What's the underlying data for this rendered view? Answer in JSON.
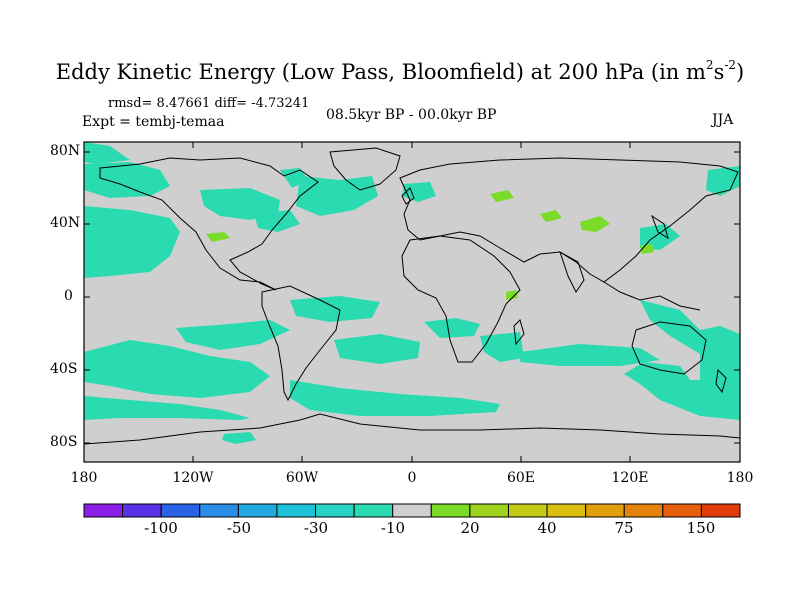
{
  "title": {
    "main": "Eddy Kinetic Energy (Low Pass, Bloomfield) at 200 hPa (in m",
    "sup1": "2",
    "mid": "s",
    "sup2": "-2",
    "end": ")"
  },
  "stats": "rmsd= 8.47661 diff= -4.73241",
  "expt": "Expt = tembj-temaa",
  "period": "08.5kyr BP - 00.0kyr BP",
  "season": "JJA",
  "lat_labels": [
    "80N",
    "40N",
    "0",
    "40S",
    "80S"
  ],
  "lon_labels": [
    "180",
    "120W",
    "60W",
    "0",
    "60E",
    "120E",
    "180"
  ],
  "colorbar": {
    "colors": [
      "#8a1ee6",
      "#5a32e6",
      "#2a64e6",
      "#2a8ee6",
      "#22aade",
      "#1cc3d8",
      "#2ad2c4",
      "#2adab0",
      "#cfcfcf",
      "#7adc28",
      "#9ed21e",
      "#c2cc16",
      "#dcbe10",
      "#e4a00c",
      "#e4820a",
      "#e4600a",
      "#e03c0a"
    ],
    "labels": [
      "-100",
      "-50",
      "-30",
      "-10",
      "20",
      "40",
      "75",
      "150"
    ]
  },
  "map_colors": {
    "background": "#cfcfcf",
    "negative": "#2adab0",
    "positive": "#7adc28",
    "coast": "#000000"
  }
}
